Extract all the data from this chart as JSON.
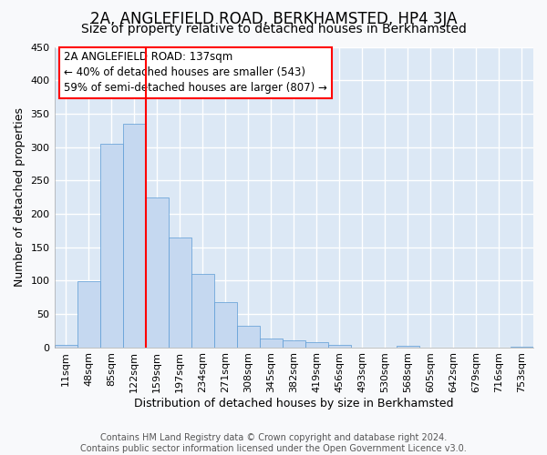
{
  "title": "2A, ANGLEFIELD ROAD, BERKHAMSTED, HP4 3JA",
  "subtitle": "Size of property relative to detached houses in Berkhamsted",
  "xlabel": "Distribution of detached houses by size in Berkhamsted",
  "ylabel": "Number of detached properties",
  "footer_line1": "Contains HM Land Registry data © Crown copyright and database right 2024.",
  "footer_line2": "Contains public sector information licensed under the Open Government Licence v3.0.",
  "bar_labels": [
    "11sqm",
    "48sqm",
    "85sqm",
    "122sqm",
    "159sqm",
    "197sqm",
    "234sqm",
    "271sqm",
    "308sqm",
    "345sqm",
    "382sqm",
    "419sqm",
    "456sqm",
    "493sqm",
    "530sqm",
    "568sqm",
    "605sqm",
    "642sqm",
    "679sqm",
    "716sqm",
    "753sqm"
  ],
  "bar_values": [
    4,
    99,
    305,
    335,
    225,
    165,
    110,
    68,
    32,
    13,
    11,
    7,
    3,
    0,
    0,
    2,
    0,
    0,
    0,
    0,
    1
  ],
  "bar_color": "#c5d8f0",
  "bar_edgecolor": "#5b9bd5",
  "fig_facecolor": "#f8f9fb",
  "ax_facecolor": "#dce8f5",
  "grid_color": "#ffffff",
  "ylim": [
    0,
    450
  ],
  "yticks": [
    0,
    50,
    100,
    150,
    200,
    250,
    300,
    350,
    400,
    450
  ],
  "annotation_text_line1": "2A ANGLEFIELD ROAD: 137sqm",
  "annotation_text_line2": "← 40% of detached houses are smaller (543)",
  "annotation_text_line3": "59% of semi-detached houses are larger (807) →",
  "red_line_x": 3.5,
  "title_fontsize": 12,
  "subtitle_fontsize": 10,
  "label_fontsize": 9,
  "tick_fontsize": 8,
  "footer_fontsize": 7,
  "ann_fontsize": 8.5
}
